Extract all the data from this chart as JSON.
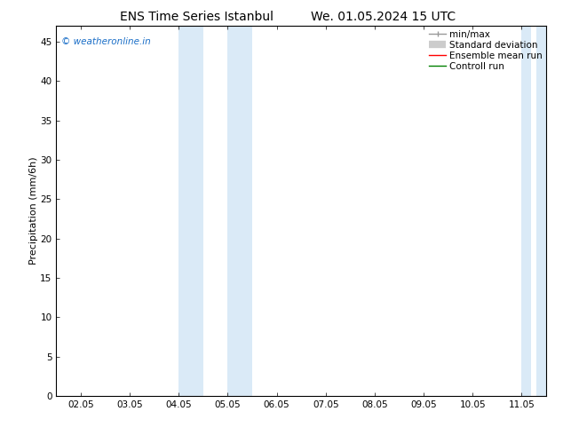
{
  "title_left": "ENS Time Series Istanbul",
  "title_right": "We. 01.05.2024 15 UTC",
  "ylabel": "Precipitation (mm/6h)",
  "xlabel": "",
  "watermark": "© weatheronline.in",
  "watermark_color": "#1a6ec7",
  "xlim_left": 1.5,
  "xlim_right": 11.5,
  "ylim_bottom": 0,
  "ylim_top": 47,
  "yticks": [
    0,
    5,
    10,
    15,
    20,
    25,
    30,
    35,
    40,
    45
  ],
  "xtick_labels": [
    "02.05",
    "03.05",
    "04.05",
    "05.05",
    "06.05",
    "07.05",
    "08.05",
    "09.05",
    "10.05",
    "11.05"
  ],
  "xtick_positions": [
    2,
    3,
    4,
    5,
    6,
    7,
    8,
    9,
    10,
    11
  ],
  "shaded_band1_left": {
    "xmin": 4.0,
    "xmax": 4.5
  },
  "shaded_band1_right": {
    "xmin": 5.0,
    "xmax": 5.5
  },
  "shaded_band2_left": {
    "xmin": 11.0,
    "xmax": 11.2
  },
  "shaded_band2_right": {
    "xmin": 11.3,
    "xmax": 11.5
  },
  "shade_color": "#daeaf7",
  "bg_color": "#ffffff",
  "plot_bg_color": "#ffffff",
  "legend_entries": [
    {
      "label": "min/max",
      "color": "#aaaaaa",
      "lw": 1.0
    },
    {
      "label": "Standard deviation",
      "color": "#cccccc",
      "lw": 5
    },
    {
      "label": "Ensemble mean run",
      "color": "#ff0000",
      "lw": 1.0
    },
    {
      "label": "Controll run",
      "color": "#008000",
      "lw": 1.0
    }
  ],
  "tick_label_fontsize": 7.5,
  "axis_label_fontsize": 8,
  "title_fontsize": 10,
  "legend_fontsize": 7.5,
  "watermark_fontsize": 7.5
}
